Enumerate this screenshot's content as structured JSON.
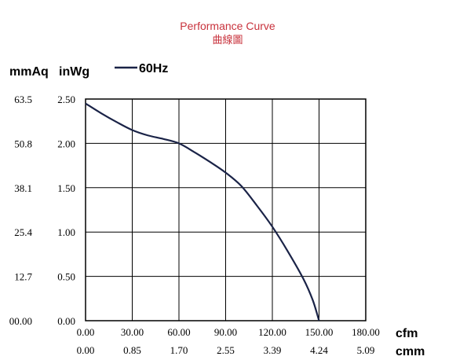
{
  "chart_data": {
    "type": "line",
    "title": "Performance Curve",
    "subtitle": "曲線圖",
    "y_unit_left": "mmAq",
    "y_unit_right": "inWg",
    "x_unit_primary": "cfm",
    "x_unit_secondary": "cmm",
    "legend_placement": "top-left",
    "grid": true,
    "xlim": [
      0,
      180
    ],
    "ylim": [
      0,
      2.5
    ],
    "x_ticks": [
      "0.00",
      "30.00",
      "60.00",
      "90.00",
      "120.00",
      "150.00",
      "180.00"
    ],
    "x_ticks_secondary": [
      "0.00",
      "0.85",
      "1.70",
      "2.55",
      "3.39",
      "4.24",
      "5.09"
    ],
    "y_ticks": [
      "0.00",
      "0.50",
      "1.00",
      "1.50",
      "2.00",
      "2.50"
    ],
    "y_ticks_secondary": [
      "00.00",
      "12.7",
      "25.4",
      "38.1",
      "50.8",
      "63.5"
    ],
    "series": [
      {
        "name": "60Hz",
        "color": "#1a2347",
        "x": [
          0,
          10,
          20,
          30,
          40,
          50,
          60,
          70,
          80,
          90,
          100,
          110,
          120,
          130,
          140,
          146,
          150
        ],
        "y": [
          2.45,
          2.34,
          2.24,
          2.15,
          2.09,
          2.05,
          2.0,
          1.9,
          1.79,
          1.67,
          1.52,
          1.3,
          1.06,
          0.78,
          0.47,
          0.23,
          0.0
        ]
      }
    ]
  }
}
